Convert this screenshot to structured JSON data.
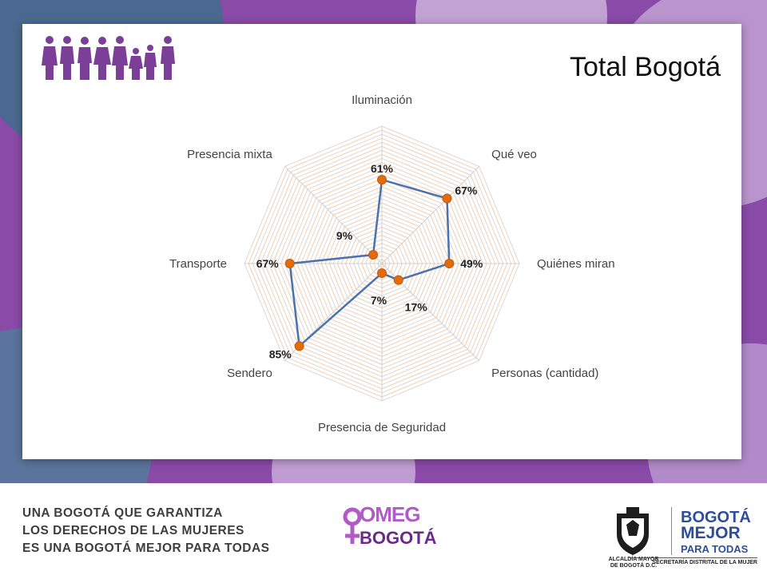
{
  "chart_data": {
    "type": "radar",
    "title": "Total Bogotá",
    "categories": [
      "Iluminación",
      "Qué veo",
      "Quiénes miran",
      "Personas (cantidad)",
      "Presencia de Seguridad",
      "Sendero",
      "Transporte",
      "Presencia mixta"
    ],
    "values": [
      61,
      67,
      49,
      17,
      7,
      85,
      67,
      9
    ],
    "value_labels": [
      "61%",
      "67%",
      "49%",
      "17%",
      "7%",
      "85%",
      "67%",
      "9%"
    ],
    "rmax": 100,
    "grid": true,
    "legend": "none"
  },
  "colors": {
    "line": "#4a72b0",
    "marker": "#e36c0a",
    "grid_band": "#f9cba6",
    "grid_line": "#d9d9d9",
    "brand_purple": "#7b3f98",
    "bogota_blue": "#2e4d9a"
  },
  "icons": {
    "family": "women-family-icon",
    "omeg_symbol": "venus-symbol-icon",
    "escudo": "bogota-coat-of-arms-icon"
  },
  "footer": {
    "slogan_lines": [
      "UNA BOGOTÁ QUE GARANTIZA",
      "LOS DERECHOS DE LAS MUJERES",
      "ES UNA BOGOTÁ MEJOR PARA TODAS"
    ],
    "omeg_top": "OMEG",
    "omeg_bottom": "BOGOTÁ",
    "alcaldia_line1": "ALCALDÍA MAYOR",
    "alcaldia_line2": "DE BOGOTÁ D.C.",
    "bogota_line1": "BOGOTÁ",
    "bogota_line2": "MEJOR",
    "bogota_line3": "PARA TODAS",
    "secretaria": "SECRETARÍA DISTRITAL DE LA MUJER"
  }
}
